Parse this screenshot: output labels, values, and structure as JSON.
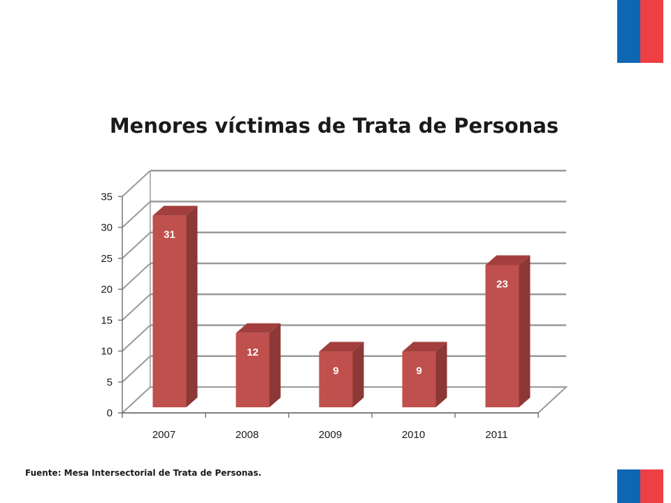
{
  "colors": {
    "flag_blue": "#0f66b3",
    "flag_red": "#ee3f45",
    "bar_front": "#c0504d",
    "bar_side": "#8c3836",
    "bar_top": "#a23f3c",
    "grid": "#999999"
  },
  "chart_data": {
    "type": "bar",
    "style": "3d-column",
    "title": "Menores víctimas de Trata de Personas",
    "xlabel": "",
    "ylabel": "",
    "categories": [
      "2007",
      "2008",
      "2009",
      "2010",
      "2011"
    ],
    "values": [
      31,
      12,
      9,
      9,
      23
    ],
    "data_labels": [
      "31",
      "12",
      "9",
      "9",
      "23"
    ],
    "ylim": [
      0,
      35
    ],
    "yticks": [
      "0",
      "5",
      "10",
      "15",
      "20",
      "25",
      "30",
      "35"
    ],
    "grid": true,
    "legend": "none"
  },
  "footnote": "Fuente: Mesa Intersectorial de Trata de Personas."
}
